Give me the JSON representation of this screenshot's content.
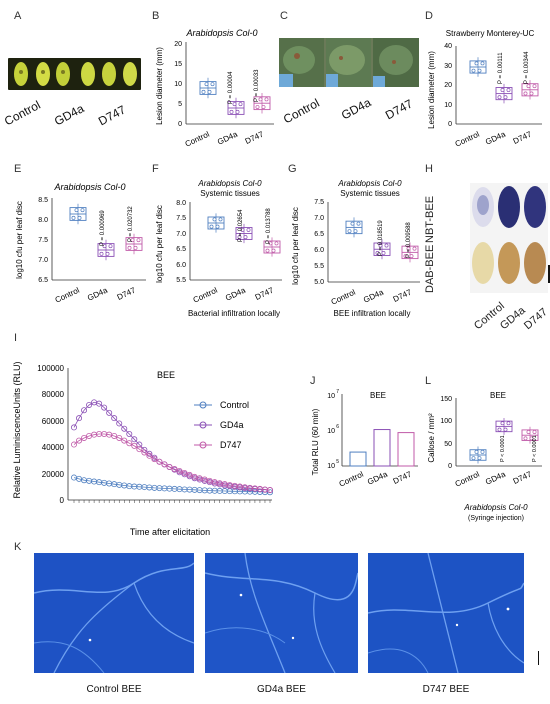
{
  "panels": {
    "A": {
      "letter": "A",
      "labels": [
        "Control",
        "GD4a",
        "D747"
      ]
    },
    "B": {
      "letter": "B",
      "title": "Arabidopsis Col-0",
      "ylabel": "Lesion diameter (mm)",
      "yticks": [
        "0",
        "5",
        "10",
        "15",
        "20"
      ],
      "categories": [
        "Control",
        "GD4a",
        "D747"
      ],
      "pvals": [
        "P = 0.00004",
        "P = 0.00033"
      ]
    },
    "C": {
      "letter": "C",
      "labels": [
        "Control",
        "GD4a",
        "D747"
      ]
    },
    "D": {
      "letter": "D",
      "title": "Strawberry Monterey-UC",
      "ylabel": "Lesion diameter (mm)",
      "yticks": [
        "0",
        "10",
        "20",
        "30",
        "40"
      ],
      "categories": [
        "Control",
        "GD4a",
        "D747"
      ],
      "pvals": [
        "P = 0.00111",
        "P = 0.00344"
      ]
    },
    "E": {
      "letter": "E",
      "title": "Arabidopsis Col-0",
      "ylabel": "log10 cfu per leaf disc",
      "yticks": [
        "6.5",
        "7.0",
        "7.5",
        "8.0",
        "8.5"
      ],
      "categories": [
        "Control",
        "GD4a",
        "D747"
      ],
      "pvals": [
        "P = 0.000969",
        "P = 0.020732"
      ]
    },
    "F": {
      "letter": "F",
      "title": "Arabidopsis Col-0",
      "subtitle": "Systemic tissues",
      "ylabel": "log10 cfu per leaf disc",
      "yticks": [
        "5.5",
        "6.0",
        "6.5",
        "7.0",
        "7.5",
        "8.0"
      ],
      "categories": [
        "Control",
        "GD4a",
        "D747"
      ],
      "pvals": [
        "P = 0.02654",
        "P = 0.013788"
      ],
      "footer": "Bacterial infiltration locally"
    },
    "G": {
      "letter": "G",
      "title": "Arabidopsis Col-0",
      "subtitle": "Systemic tissues",
      "ylabel": "log10 cfu per leaf disc",
      "yticks": [
        "5.0",
        "5.5",
        "6.0",
        "6.5",
        "7.0",
        "7.5"
      ],
      "categories": [
        "Control",
        "GD4a",
        "D747"
      ],
      "pvals": [
        "P = 0.018519",
        "P = 0.009588"
      ],
      "footer": "BEE infiltration locally"
    },
    "H": {
      "letter": "H",
      "row_labels": [
        "NBT-BEE",
        "DAB-BEE"
      ],
      "labels": [
        "Control",
        "GD4a",
        "D747"
      ]
    },
    "I": {
      "letter": "I",
      "title": "BEE",
      "ylabel": "Relative LuminiscenceUnits (RLU)",
      "xlabel": "Time after elicitation",
      "yticks": [
        "0",
        "20000",
        "40000",
        "60000",
        "80000",
        "100000"
      ],
      "legend": [
        "Control",
        "GD4a",
        "D747"
      ]
    },
    "J": {
      "letter": "J",
      "title": "BEE",
      "ylabel": "Total RLU (60 min)",
      "yticks": [
        "10",
        "10",
        "10"
      ],
      "yexp": [
        "5",
        "6",
        "7"
      ],
      "categories": [
        "Control",
        "GD4a",
        "D747"
      ]
    },
    "L": {
      "letter": "L",
      "title": "BEE",
      "ylabel": "Callose / mm²",
      "yticks": [
        "0",
        "50",
        "100",
        "150"
      ],
      "categories": [
        "Control",
        "GD4a",
        "D747"
      ],
      "pvals": [
        "P < 0.0001",
        "P < 0.0001"
      ],
      "footer1": "Arabidopsis Col-0",
      "footer2": "(Syringe injection)"
    },
    "K": {
      "letter": "K",
      "captions": [
        "Control BEE",
        "GD4a BEE",
        "D747 BEE"
      ]
    }
  },
  "colors": {
    "control": "#4f7fc0",
    "gd4a": "#8a4fb5",
    "d747": "#c05aa8",
    "micro": "#1f56c8"
  },
  "chart_data": [
    {
      "type": "bar",
      "panel": "B",
      "title": "Arabidopsis Col-0",
      "ylabel": "Lesion diameter (mm)",
      "categories": [
        "Control",
        "GD4a",
        "D747"
      ],
      "values": [
        9,
        4,
        5.2
      ],
      "ylim": [
        0,
        20
      ]
    },
    {
      "type": "bar",
      "panel": "D",
      "title": "Strawberry Monterey-UC",
      "ylabel": "Lesion diameter (mm)",
      "categories": [
        "Control",
        "GD4a",
        "D747"
      ],
      "values": [
        30,
        16,
        18
      ],
      "ylim": [
        0,
        40
      ]
    },
    {
      "type": "bar",
      "panel": "E",
      "ylabel": "log10 cfu per leaf disc",
      "categories": [
        "Control",
        "GD4a",
        "D747"
      ],
      "values": [
        8.15,
        7.25,
        7.4
      ],
      "ylim": [
        6.5,
        8.5
      ]
    },
    {
      "type": "bar",
      "panel": "F",
      "ylabel": "log10 cfu per leaf disc",
      "categories": [
        "Control",
        "GD4a",
        "D747"
      ],
      "values": [
        7.4,
        7.05,
        6.6
      ],
      "ylim": [
        5.5,
        8.0
      ]
    },
    {
      "type": "bar",
      "panel": "G",
      "ylabel": "log10 cfu per leaf disc",
      "categories": [
        "Control",
        "GD4a",
        "D747"
      ],
      "values": [
        6.75,
        6.05,
        5.95
      ],
      "ylim": [
        5.0,
        7.5
      ]
    },
    {
      "type": "line",
      "panel": "I",
      "title": "BEE",
      "ylabel": "Relative LuminiscenceUnits (RLU)",
      "xlabel": "Time after elicitation",
      "ylim": [
        0,
        100000
      ],
      "series": [
        {
          "name": "Control",
          "values": [
            17000,
            16000,
            15000,
            14500,
            14000,
            13500,
            13000,
            12500,
            12000,
            11500,
            11000,
            10500,
            10200,
            10000,
            9800,
            9500,
            9200,
            9000,
            8800,
            8600,
            8400,
            8200,
            8000,
            7900,
            7700,
            7500,
            7300,
            7100,
            7000,
            6900,
            6800,
            6700,
            6600,
            6500,
            6400,
            6300,
            6200,
            6100,
            6000,
            5900
          ]
        },
        {
          "name": "GD4a",
          "values": [
            55000,
            62000,
            68000,
            72000,
            74000,
            73000,
            70000,
            66000,
            62000,
            58000,
            54000,
            50000,
            46000,
            42000,
            38000,
            35000,
            32000,
            29000,
            27000,
            25000,
            23000,
            21000,
            19500,
            18000,
            16500,
            15500,
            14500,
            13500,
            12500,
            11800,
            11000,
            10500,
            10000,
            9500,
            9000,
            8700,
            8400,
            8100,
            7800,
            7500
          ]
        },
        {
          "name": "D747",
          "values": [
            42000,
            45000,
            47000,
            48500,
            49500,
            50000,
            50000,
            49500,
            48500,
            47000,
            45000,
            43000,
            41000,
            38500,
            36000,
            33500,
            31000,
            29000,
            27000,
            25000,
            23500,
            22000,
            20500,
            19000,
            17500,
            16500,
            15500,
            14500,
            13500,
            12700,
            12000,
            11300,
            10700,
            10200,
            9700,
            9200,
            8800,
            8400,
            8000,
            7600
          ]
        }
      ]
    },
    {
      "type": "bar",
      "panel": "J",
      "title": "BEE",
      "ylabel": "Total RLU (60 min)",
      "categories": [
        "Control",
        "GD4a",
        "D747"
      ],
      "values": [
        250000,
        1100000,
        900000
      ],
      "ylim": [
        100000,
        10000000
      ]
    },
    {
      "type": "bar",
      "panel": "L",
      "title": "BEE",
      "ylabel": "Callose / mm²",
      "categories": [
        "Control",
        "GD4a",
        "D747"
      ],
      "values": [
        25,
        90,
        70
      ],
      "ylim": [
        0,
        150
      ]
    }
  ]
}
